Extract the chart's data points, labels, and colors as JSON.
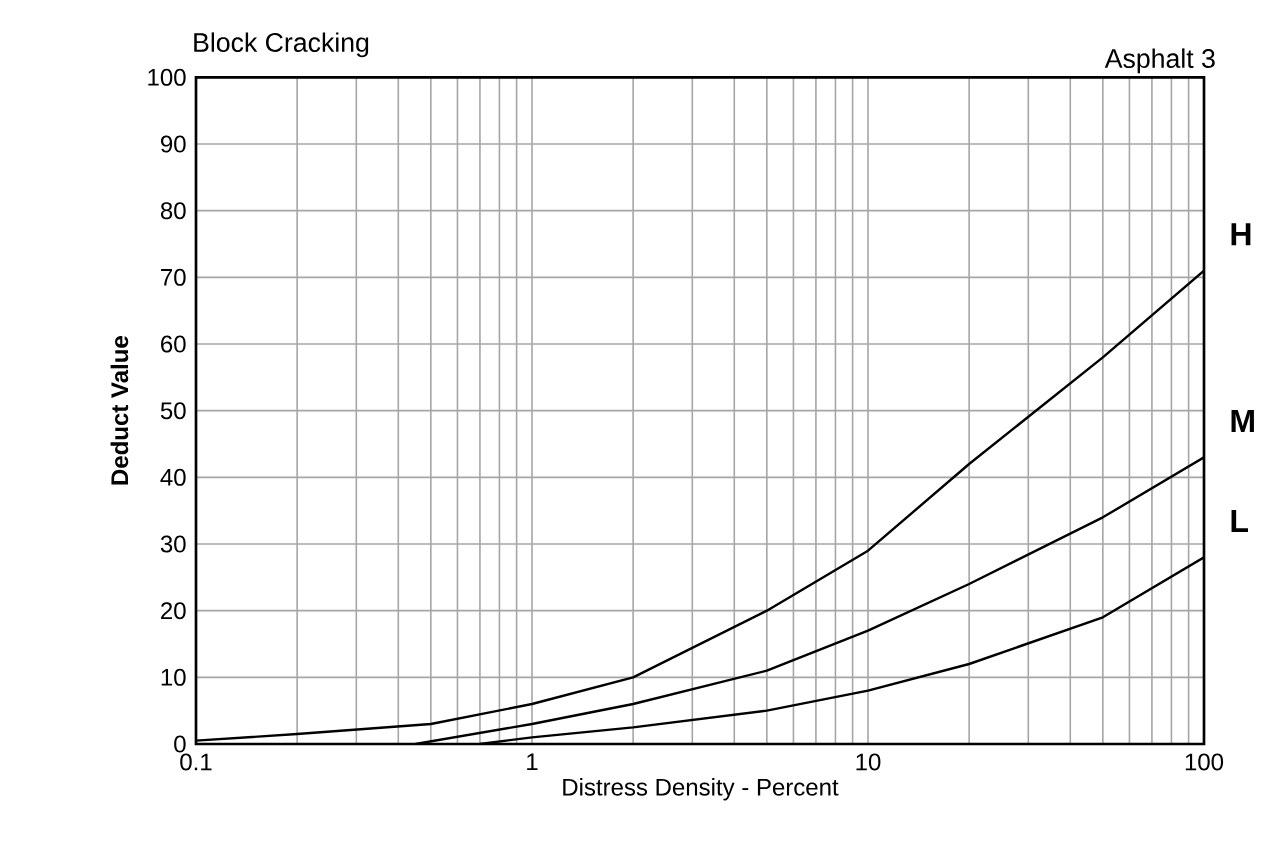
{
  "chart_data": {
    "type": "line",
    "title": "Block Cracking",
    "subtitle": "Asphalt 3",
    "xlabel": "Distress Density - Percent",
    "ylabel": "Deduct Value",
    "log": "x",
    "xlim": [
      0.1,
      100
    ],
    "ylim": [
      0,
      100
    ],
    "xticks": [
      0.1,
      1,
      10,
      100
    ],
    "yticks": [
      0,
      10,
      20,
      30,
      40,
      50,
      60,
      70,
      80,
      90,
      100
    ],
    "grid": true,
    "series": [
      {
        "name": "H",
        "color": "#000000",
        "x": [
          0.1,
          0.2,
          0.5,
          1,
          2,
          5,
          10,
          20,
          50,
          100
        ],
        "values": [
          0.5,
          1.5,
          3,
          6,
          10,
          20,
          29,
          42,
          58,
          71
        ]
      },
      {
        "name": "M",
        "color": "#000000",
        "x": [
          0.45,
          1,
          2,
          5,
          10,
          20,
          50,
          100
        ],
        "values": [
          0,
          3,
          6,
          11,
          17,
          24,
          34,
          43
        ]
      },
      {
        "name": "L",
        "color": "#000000",
        "x": [
          0.7,
          1,
          2,
          5,
          10,
          20,
          50,
          100
        ],
        "values": [
          0,
          1,
          2.5,
          5,
          8,
          12,
          19,
          28
        ]
      }
    ]
  }
}
